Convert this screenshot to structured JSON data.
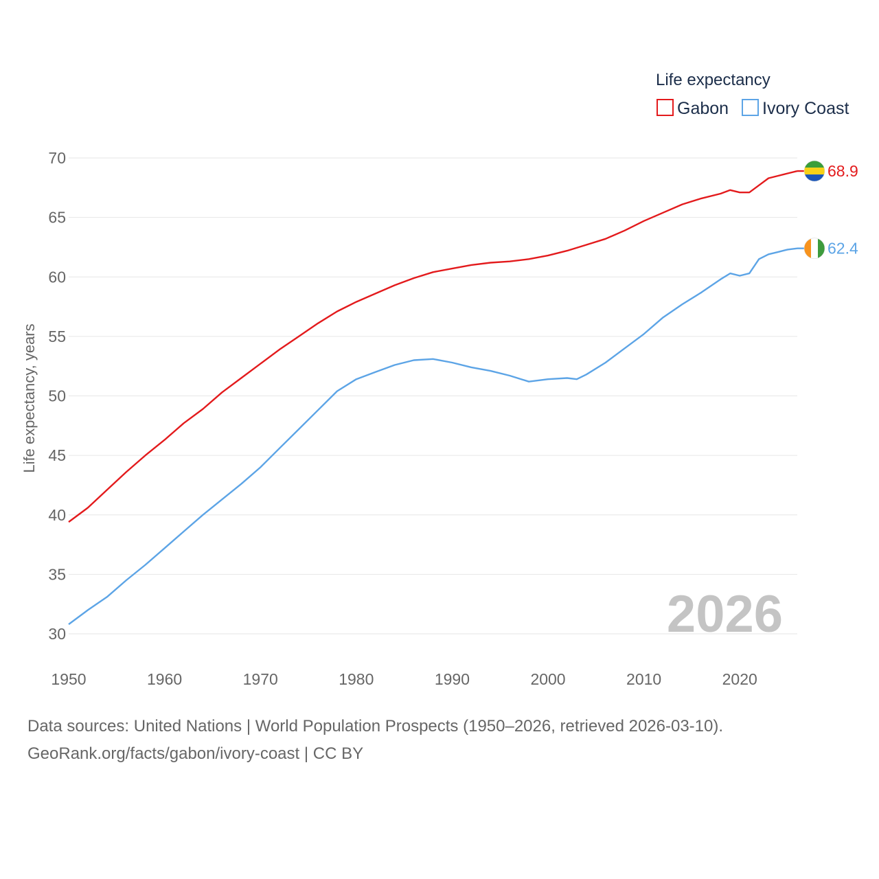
{
  "chart_data": {
    "type": "line",
    "title": "Life expectancy",
    "xlabel": "",
    "ylabel": "Life expectancy, years",
    "xlim": [
      1950,
      2026
    ],
    "ylim": [
      30,
      70
    ],
    "x_ticks": [
      1950,
      1960,
      1970,
      1980,
      1990,
      2000,
      2010,
      2020
    ],
    "y_ticks": [
      30,
      35,
      40,
      45,
      50,
      55,
      60,
      65,
      70
    ],
    "grid": true,
    "legend_position": "top-right",
    "year_label": "2026",
    "series": [
      {
        "name": "Gabon",
        "color": "#e31a1c",
        "end_label": "68.9",
        "flag_icon": "gabon-flag-icon",
        "points": [
          [
            1950,
            39.4
          ],
          [
            1952,
            40.6
          ],
          [
            1954,
            42.1
          ],
          [
            1956,
            43.6
          ],
          [
            1958,
            45.0
          ],
          [
            1960,
            46.3
          ],
          [
            1962,
            47.7
          ],
          [
            1964,
            48.9
          ],
          [
            1966,
            50.3
          ],
          [
            1968,
            51.5
          ],
          [
            1970,
            52.7
          ],
          [
            1972,
            53.9
          ],
          [
            1974,
            55.0
          ],
          [
            1976,
            56.1
          ],
          [
            1978,
            57.1
          ],
          [
            1980,
            57.9
          ],
          [
            1982,
            58.6
          ],
          [
            1984,
            59.3
          ],
          [
            1986,
            59.9
          ],
          [
            1988,
            60.4
          ],
          [
            1990,
            60.7
          ],
          [
            1992,
            61.0
          ],
          [
            1994,
            61.2
          ],
          [
            1996,
            61.3
          ],
          [
            1998,
            61.5
          ],
          [
            2000,
            61.8
          ],
          [
            2002,
            62.2
          ],
          [
            2004,
            62.7
          ],
          [
            2006,
            63.2
          ],
          [
            2008,
            63.9
          ],
          [
            2010,
            64.7
          ],
          [
            2012,
            65.4
          ],
          [
            2014,
            66.1
          ],
          [
            2016,
            66.6
          ],
          [
            2018,
            67.0
          ],
          [
            2019,
            67.3
          ],
          [
            2020,
            67.1
          ],
          [
            2021,
            67.1
          ],
          [
            2022,
            67.7
          ],
          [
            2023,
            68.3
          ],
          [
            2024,
            68.5
          ],
          [
            2025,
            68.7
          ],
          [
            2026,
            68.9
          ]
        ]
      },
      {
        "name": "Ivory Coast",
        "color": "#5ca4e6",
        "end_label": "62.4",
        "flag_icon": "ivory-coast-flag-icon",
        "points": [
          [
            1950,
            30.8
          ],
          [
            1952,
            32.0
          ],
          [
            1954,
            33.1
          ],
          [
            1956,
            34.5
          ],
          [
            1958,
            35.8
          ],
          [
            1960,
            37.2
          ],
          [
            1962,
            38.6
          ],
          [
            1964,
            40.0
          ],
          [
            1966,
            41.3
          ],
          [
            1968,
            42.6
          ],
          [
            1970,
            44.0
          ],
          [
            1972,
            45.6
          ],
          [
            1974,
            47.2
          ],
          [
            1976,
            48.8
          ],
          [
            1978,
            50.4
          ],
          [
            1980,
            51.4
          ],
          [
            1982,
            52.0
          ],
          [
            1984,
            52.6
          ],
          [
            1986,
            53.0
          ],
          [
            1988,
            53.1
          ],
          [
            1990,
            52.8
          ],
          [
            1992,
            52.4
          ],
          [
            1994,
            52.1
          ],
          [
            1996,
            51.7
          ],
          [
            1998,
            51.2
          ],
          [
            2000,
            51.4
          ],
          [
            2002,
            51.5
          ],
          [
            2003,
            51.4
          ],
          [
            2004,
            51.8
          ],
          [
            2006,
            52.8
          ],
          [
            2008,
            54.0
          ],
          [
            2010,
            55.2
          ],
          [
            2012,
            56.6
          ],
          [
            2014,
            57.7
          ],
          [
            2016,
            58.7
          ],
          [
            2018,
            59.8
          ],
          [
            2019,
            60.3
          ],
          [
            2020,
            60.1
          ],
          [
            2021,
            60.3
          ],
          [
            2022,
            61.5
          ],
          [
            2023,
            61.9
          ],
          [
            2024,
            62.1
          ],
          [
            2025,
            62.3
          ],
          [
            2026,
            62.4
          ]
        ]
      }
    ]
  },
  "footer": {
    "line1": "Data sources: United Nations | World Population Prospects (1950–2026, retrieved 2026-03-10).",
    "line2": "GeoRank.org/facts/gabon/ivory-coast | CC BY"
  },
  "colors": {
    "grid": "#e6e6e6",
    "gabon_flag": [
      "#3a9e3a",
      "#f7d117",
      "#1a56b8"
    ],
    "ivory_coast_flag": [
      "#f7931e",
      "#ffffff",
      "#3d9b3d"
    ]
  }
}
